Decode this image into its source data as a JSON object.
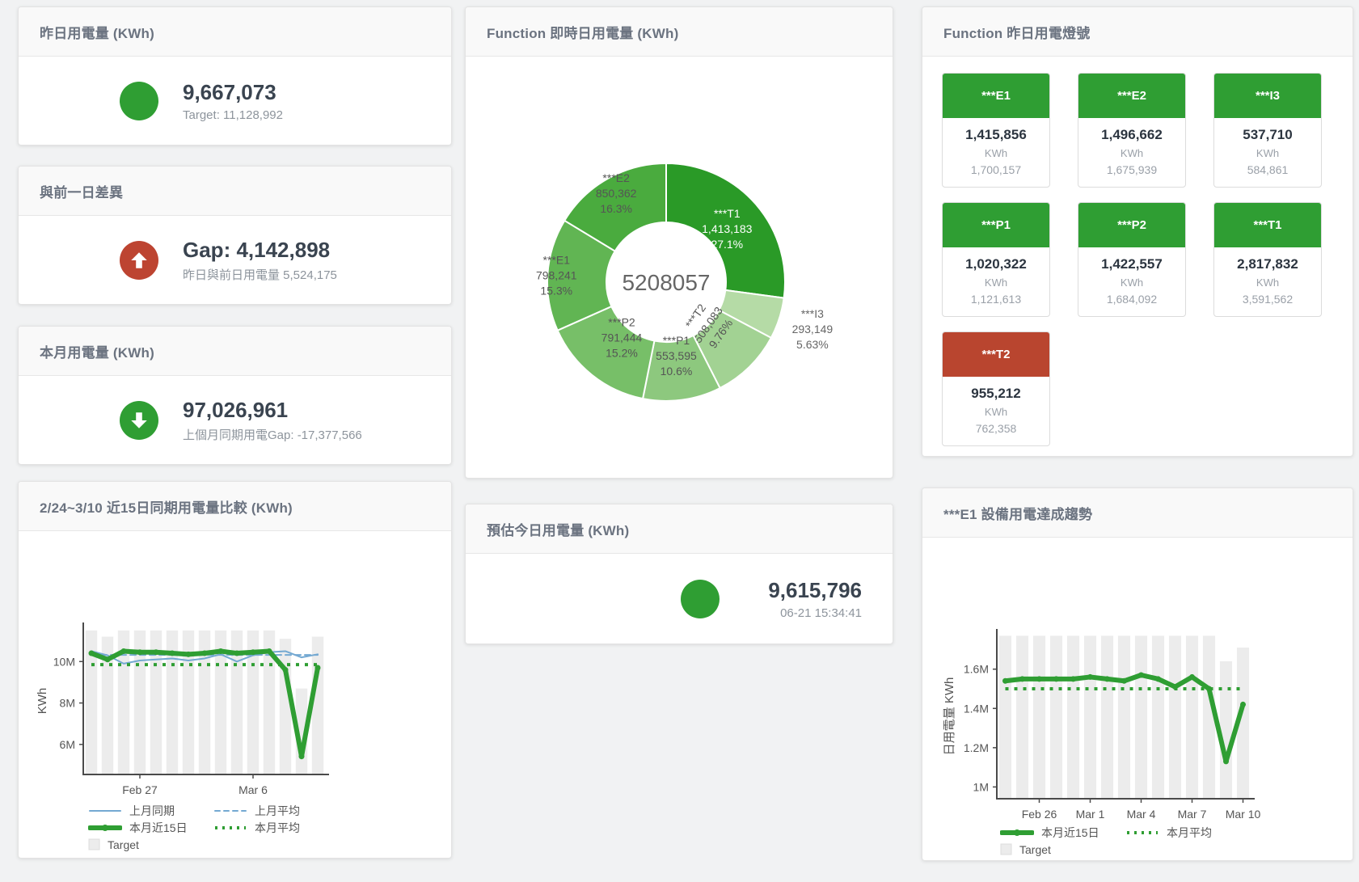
{
  "cards": {
    "yesterday": {
      "title": "昨日用電量 (KWh)",
      "value": "9,667,073",
      "subtitle": "Target: 11,128,992",
      "indicator": "circle",
      "color": "#2f9e33"
    },
    "diff": {
      "title": "與前一日差異",
      "value": "Gap: 4,142,898",
      "subtitle": "昨日與前日用電量 5,524,175",
      "indicator": "arrow-up",
      "color": "#bd4431"
    },
    "month": {
      "title": "本月用電量 (KWh)",
      "value": "97,026,961",
      "subtitle": "上個月同期用電Gap: -17,377,566",
      "indicator": "arrow-down",
      "color": "#2f9e33"
    },
    "estimate": {
      "title": "預估今日用電量 (KWh)",
      "value": "9,615,796",
      "subtitle": "06-21 15:34:41",
      "indicator": "circle",
      "color": "#2f9e33"
    }
  },
  "lights_card": {
    "title": "Function 昨日用電燈號",
    "unit_label": "KWh",
    "status_colors": {
      "green": "#2f9e33",
      "red": "#b9452f"
    },
    "tiles": [
      {
        "label": "***E1",
        "value": "1,415,856",
        "target": "1,700,157",
        "status": "green"
      },
      {
        "label": "***E2",
        "value": "1,496,662",
        "target": "1,675,939",
        "status": "green"
      },
      {
        "label": "***I3",
        "value": "537,710",
        "target": "584,861",
        "status": "green"
      },
      {
        "label": "***P1",
        "value": "1,020,322",
        "target": "1,121,613",
        "status": "green"
      },
      {
        "label": "***P2",
        "value": "1,422,557",
        "target": "1,684,092",
        "status": "green"
      },
      {
        "label": "***T1",
        "value": "2,817,832",
        "target": "3,591,562",
        "status": "green"
      },
      {
        "label": "***T2",
        "value": "955,212",
        "target": "762,358",
        "status": "red"
      }
    ]
  },
  "chart_data": [
    {
      "type": "pie",
      "title": "Function 即時日用電量 (KWh)",
      "center_total": "5208057",
      "slices": [
        {
          "name": "***T1",
          "value": 1413183,
          "value_label": "1,413,183",
          "pct": "27.1%"
        },
        {
          "name": "***I3",
          "value": 293149,
          "value_label": "293,149",
          "pct": "5.63%"
        },
        {
          "name": "***T2",
          "value": 508083,
          "value_label": "508,083",
          "pct": "9.76%"
        },
        {
          "name": "***P1",
          "value": 553595,
          "value_label": "553,595",
          "pct": "10.6%"
        },
        {
          "name": "***P2",
          "value": 791444,
          "value_label": "791,444",
          "pct": "15.2%"
        },
        {
          "name": "***E1",
          "value": 798241,
          "value_label": "798,241",
          "pct": "15.3%"
        },
        {
          "name": "***E2",
          "value": 850362,
          "value_label": "850,362",
          "pct": "16.3%"
        }
      ],
      "colors": [
        "#2a9a27",
        "#b5dba6",
        "#a2d293",
        "#8dc87e",
        "#77bf68",
        "#61b553",
        "#4aab3e"
      ]
    },
    {
      "type": "line",
      "title": "2/24~3/10 近15日同期用電量比較 (KWh)",
      "ylabel": "KWh",
      "ylim": [
        4.55,
        11.65
      ],
      "yticks": [
        {
          "v": 6,
          "label": "6M"
        },
        {
          "v": 8,
          "label": "8M"
        },
        {
          "v": 10,
          "label": "10M"
        }
      ],
      "xticks": [
        {
          "i": 3,
          "label": "Feb 27"
        },
        {
          "i": 10,
          "label": "Mar 6"
        }
      ],
      "series": [
        {
          "name": "Target",
          "style": "bar",
          "color": "#ececec",
          "values": [
            11.5,
            11.2,
            11.5,
            11.5,
            11.5,
            11.5,
            11.5,
            11.5,
            11.5,
            11.5,
            11.5,
            11.5,
            11.1,
            8.7,
            11.2
          ]
        },
        {
          "name": "上月同期",
          "style": "line",
          "color": "#74a9d2",
          "values": [
            10.5,
            10.3,
            9.9,
            10.05,
            10.1,
            10.15,
            10.05,
            10.15,
            10.35,
            10.0,
            10.3,
            10.45,
            10.5,
            10.2,
            10.35
          ]
        },
        {
          "name": "上月平均",
          "style": "dashed",
          "color": "#74a9d2",
          "values": [
            10.32
          ]
        },
        {
          "name": "本月近15日",
          "style": "thick",
          "color": "#2f9e33",
          "values": [
            10.4,
            10.1,
            10.5,
            10.45,
            10.45,
            10.4,
            10.35,
            10.4,
            10.5,
            10.4,
            10.45,
            10.5,
            9.6,
            5.42,
            9.7
          ]
        },
        {
          "name": "本月平均",
          "style": "dotted",
          "color": "#2f9e33",
          "values": [
            9.85
          ]
        }
      ],
      "legend_order": [
        "上月同期",
        "上月平均",
        "本月近15日",
        "本月平均",
        "Target"
      ]
    },
    {
      "type": "line",
      "title": "***E1 設備用電達成趨勢",
      "ylabel": "日用電量 KWh",
      "ylim": [
        0.94,
        1.78
      ],
      "yticks": [
        {
          "v": 1,
          "label": "1M"
        },
        {
          "v": 1.2,
          "label": "1.2M"
        },
        {
          "v": 1.4,
          "label": "1.4M"
        },
        {
          "v": 1.6,
          "label": "1.6M"
        }
      ],
      "xticks": [
        {
          "i": 2,
          "label": "Feb 26"
        },
        {
          "i": 5,
          "label": "Mar 1"
        },
        {
          "i": 8,
          "label": "Mar 4"
        },
        {
          "i": 11,
          "label": "Mar 7"
        },
        {
          "i": 14,
          "label": "Mar 10"
        }
      ],
      "series": [
        {
          "name": "Target",
          "style": "bar",
          "color": "#ececec",
          "values": [
            1.77,
            1.77,
            1.77,
            1.77,
            1.77,
            1.77,
            1.77,
            1.77,
            1.77,
            1.77,
            1.77,
            1.77,
            1.77,
            1.64,
            1.71
          ]
        },
        {
          "name": "本月近15日",
          "style": "thick",
          "color": "#2f9e33",
          "values": [
            1.54,
            1.55,
            1.55,
            1.55,
            1.55,
            1.56,
            1.55,
            1.54,
            1.57,
            1.55,
            1.51,
            1.56,
            1.5,
            1.13,
            1.42
          ]
        },
        {
          "name": "本月平均",
          "style": "dotted",
          "color": "#2f9e33",
          "values": [
            1.5
          ]
        }
      ],
      "legend_order": [
        "本月近15日",
        "本月平均",
        "Target"
      ]
    }
  ]
}
